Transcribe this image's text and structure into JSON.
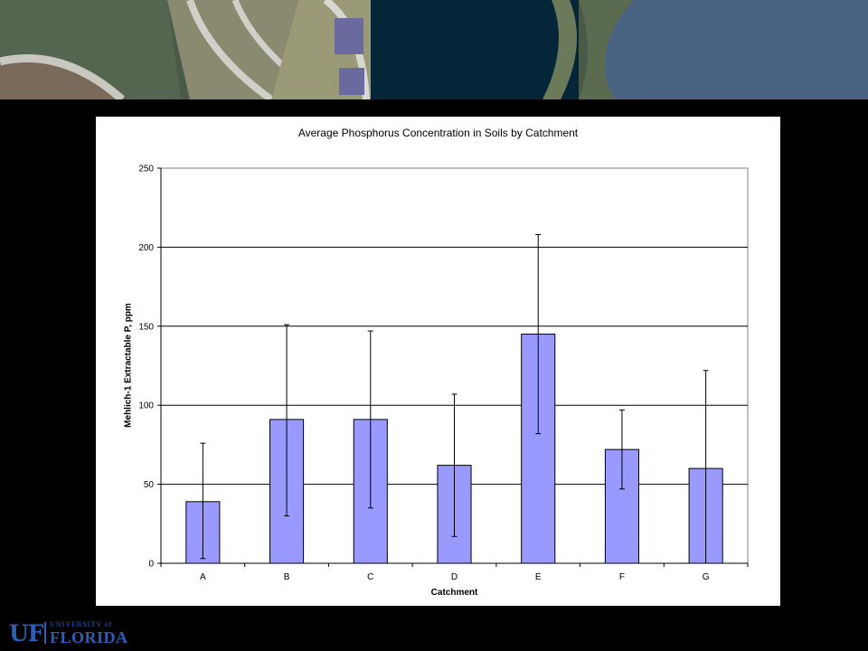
{
  "banner": {
    "map_description": "aerial-neighborhood-map"
  },
  "footer": {
    "logo_uf": "UF",
    "logo_university": "UNIVERSITY of",
    "logo_florida": "FLORIDA"
  },
  "colors": {
    "bar": "#9999ff",
    "gridline": "#000000",
    "background": "#000000",
    "panel": "#ffffff"
  },
  "chart_data": {
    "type": "bar",
    "title": "Average Phosphorus Concentration in Soils by Catchment",
    "xlabel": "Catchment",
    "ylabel": "Mehlich-1 Extractable P, ppm",
    "categories": [
      "A",
      "B",
      "C",
      "D",
      "E",
      "F",
      "G"
    ],
    "values": [
      39,
      91,
      91,
      62,
      145,
      72,
      60
    ],
    "error_upper": [
      76,
      151,
      147,
      107,
      208,
      97,
      122
    ],
    "error_lower": [
      3,
      30,
      35,
      17,
      82,
      47,
      0
    ],
    "ylim": [
      0,
      250
    ],
    "yticks": [
      0,
      50,
      100,
      150,
      200,
      250
    ],
    "grid": true
  }
}
